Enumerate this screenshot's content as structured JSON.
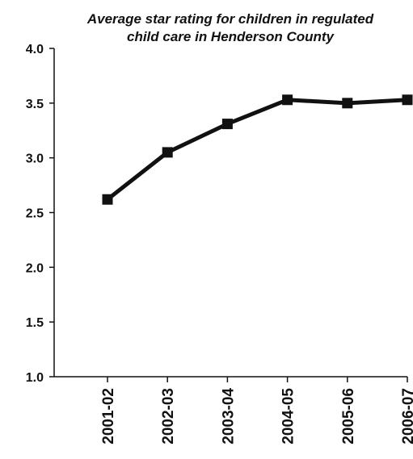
{
  "chart_data": {
    "type": "line",
    "title_lines": [
      "Average star rating for children in regulated",
      "child care in Henderson County"
    ],
    "xlabel": "",
    "ylabel": "",
    "categories": [
      "2001-02",
      "2002-03",
      "2003-04",
      "2004-05",
      "2005-06",
      "2006-07"
    ],
    "series": [
      {
        "values": [
          2.62,
          3.05,
          3.31,
          3.53,
          3.5,
          3.53
        ],
        "color": "#111111",
        "marker": "square"
      }
    ],
    "ylim": [
      1.0,
      4.0
    ],
    "yticks": [
      "1.0",
      "1.5",
      "2.0",
      "2.5",
      "3.0",
      "3.5",
      "4.0"
    ],
    "grid": false,
    "legend": "none"
  }
}
